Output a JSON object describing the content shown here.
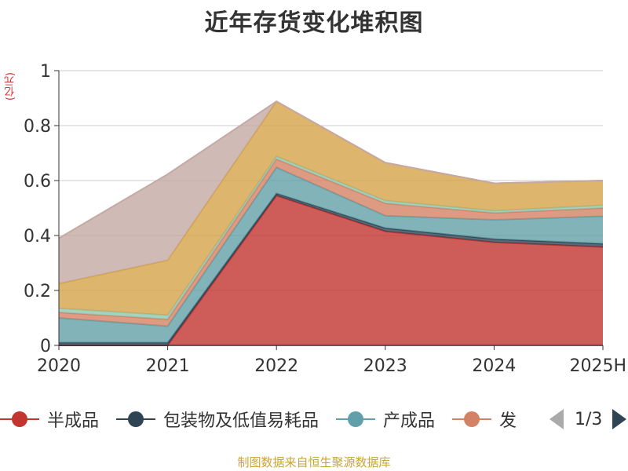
{
  "title": "近年存货变化堆积图",
  "unit_label": "(亿元)",
  "legend": {
    "page_text": "1/3",
    "visible_items": [
      {
        "name": "半成品",
        "color": "#c23531",
        "label": "半成品"
      },
      {
        "name": "包装物及低值易耗品",
        "color": "#2f4554",
        "label": "包装物及低值易耗品"
      },
      {
        "name": "产成品",
        "color": "#61a0a8",
        "label": "产成品"
      },
      {
        "name": "发",
        "color": "#d48265",
        "label": "发"
      }
    ]
  },
  "source": "制图数据来自恒生聚源数据库",
  "chart_data": {
    "type": "area",
    "stacked": true,
    "categories": [
      "2020",
      "2021",
      "2022",
      "2023",
      "2024",
      "2025H"
    ],
    "ylim": [
      0,
      1
    ],
    "yticks": [
      0,
      0.2,
      0.4,
      0.6,
      0.8,
      1
    ],
    "ytick_labels": [
      "0",
      "0.2",
      "0.4",
      "0.6",
      "0.8",
      "1"
    ],
    "grid": true,
    "series": [
      {
        "name": "半成品",
        "color": "#c23531",
        "values": [
          0,
          0,
          0.545,
          0.415,
          0.375,
          0.358
        ]
      },
      {
        "name": "包装物及低值易耗品",
        "color": "#2f4554",
        "values": [
          0.01,
          0.01,
          0.008,
          0.012,
          0.012,
          0.012
        ]
      },
      {
        "color": "#61a0a8",
        "values": [
          0.09,
          0.06,
          0.095,
          0.045,
          0.07,
          0.1
        ]
      },
      {
        "color": "#d48265",
        "values": [
          0.02,
          0.025,
          0.03,
          0.045,
          0.025,
          0.03
        ]
      },
      {
        "color": "#91c7ae",
        "values": [
          0.015,
          0.015,
          0.01,
          0.01,
          0.008,
          0.01
        ]
      },
      {
        "color": "#d6a348",
        "values": [
          0.09,
          0.2,
          0.2,
          0.138,
          0.1,
          0.09
        ]
      },
      {
        "color": "#c4a9a4",
        "values": [
          0.165,
          0.313,
          0,
          0,
          0,
          0
        ]
      }
    ]
  }
}
